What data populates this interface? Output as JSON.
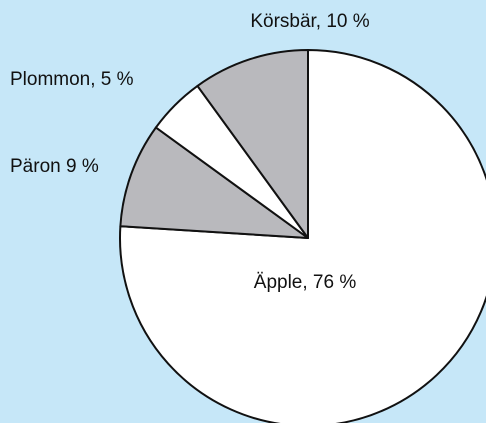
{
  "chart_data": {
    "type": "pie",
    "values": [
      76,
      9,
      5,
      10
    ],
    "value_labels": [
      "Äpple, 76 %",
      "Päron 9 %",
      "Plommon, 5 %",
      "Körsbär, 10 %"
    ],
    "colors": [
      "#ffffff",
      "#b9b9bd",
      "#ffffff",
      "#b9b9bd"
    ]
  }
}
